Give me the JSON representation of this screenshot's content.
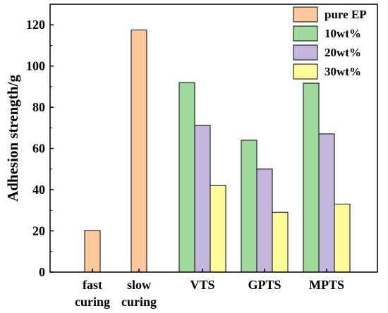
{
  "chart_data": {
    "type": "bar",
    "categories": [
      [
        "fast",
        "curing"
      ],
      [
        "slow",
        "curing"
      ],
      [
        "VTS"
      ],
      [
        "GPTS"
      ],
      [
        "MPTS"
      ]
    ],
    "series": [
      {
        "name": "pure EP",
        "color": "#fdc89b",
        "values": [
          20.2,
          117.5,
          null,
          null,
          null
        ]
      },
      {
        "name": "10wt%",
        "color": "#9fd99b",
        "values": [
          null,
          null,
          92.0,
          64.0,
          91.7
        ]
      },
      {
        "name": "20wt%",
        "color": "#c5b6dd",
        "values": [
          null,
          null,
          71.3,
          50.0,
          67.1
        ]
      },
      {
        "name": "30wt%",
        "color": "#fdfb9a",
        "values": [
          null,
          null,
          42.0,
          29.0,
          33.0
        ]
      }
    ],
    "xlabel": "",
    "ylabel": "Adhesion strength/g",
    "ylim": [
      0,
      130
    ],
    "yticks": [
      0,
      20,
      40,
      60,
      80,
      100,
      120
    ],
    "legend_position": "top-right",
    "grid": false
  }
}
